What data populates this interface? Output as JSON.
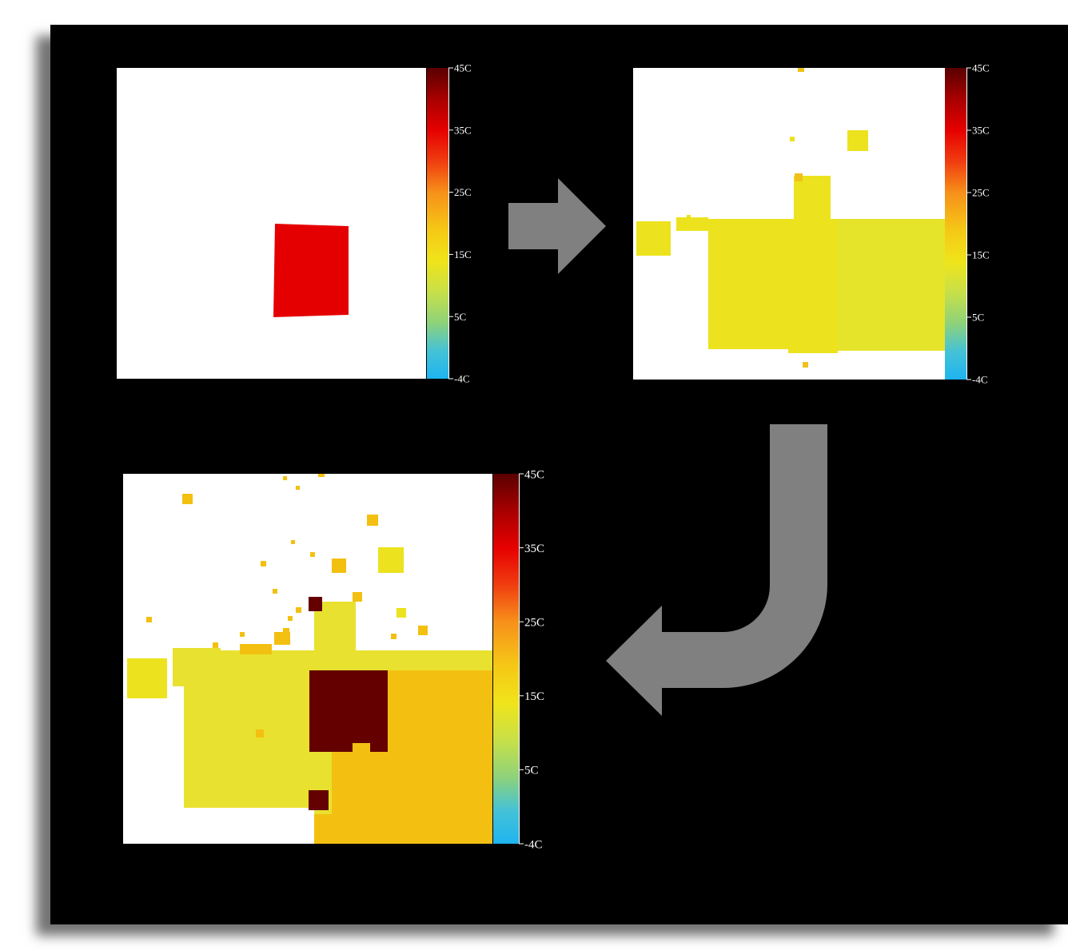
{
  "colorbar": {
    "tick_labels": [
      "45C",
      "35C",
      "25C",
      "15C",
      "5C",
      "-4C"
    ],
    "gradient_stops": [
      {
        "offset": 0.0,
        "color": "#5a0000"
      },
      {
        "offset": 0.1,
        "color": "#a80000"
      },
      {
        "offset": 0.2,
        "color": "#e60000"
      },
      {
        "offset": 0.3,
        "color": "#f03d10"
      },
      {
        "offset": 0.4,
        "color": "#f7901a"
      },
      {
        "offset": 0.52,
        "color": "#f5c816"
      },
      {
        "offset": 0.62,
        "color": "#f0e41a"
      },
      {
        "offset": 0.72,
        "color": "#c8e048"
      },
      {
        "offset": 0.82,
        "color": "#8ed27a"
      },
      {
        "offset": 0.91,
        "color": "#45c2d6"
      },
      {
        "offset": 1.0,
        "color": "#1eb4f0"
      }
    ]
  },
  "colors": {
    "background": "#000000",
    "panel": "#ffffff",
    "arrow": "#808080",
    "hot_red": "#e40000",
    "warm_yellow": "#ede21e",
    "yellow_green": "#e5e42b",
    "orange": "#f3c011",
    "dark_red": "#640000"
  },
  "panels": [
    {
      "name": "step-1-heatmap"
    },
    {
      "name": "step-2-heatmap"
    },
    {
      "name": "step-3-heatmap"
    }
  ],
  "arrows": [
    {
      "name": "right-arrow",
      "direction": "right"
    },
    {
      "name": "down-left-arrow",
      "direction": "down-then-left"
    }
  ]
}
